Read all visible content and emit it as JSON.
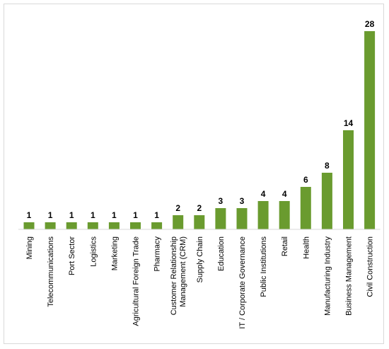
{
  "chart_data": {
    "type": "bar",
    "categories": [
      "Mining",
      "Telecommunications",
      "Port Sector",
      "Logistics",
      "Marketing",
      "Agricultural Foreign Trade",
      "Pharmacy",
      "Customer Relationship Management (CRM)",
      "Supply Chain",
      "Education",
      "IT / Corporate Governance",
      "Public Institutions",
      "Retail",
      "Health",
      "Manufacturing Industry",
      "Business Management",
      "Civil Construction"
    ],
    "category_lines": [
      [
        "Mining"
      ],
      [
        "Telecommunications"
      ],
      [
        "Port Sector"
      ],
      [
        "Logistics"
      ],
      [
        "Marketing"
      ],
      [
        "Agricultural Foreign Trade"
      ],
      [
        "Pharmacy"
      ],
      [
        "Customer Relationship",
        "Management (CRM)"
      ],
      [
        "Supply Chain"
      ],
      [
        "Education"
      ],
      [
        "IT / Corporate Governance"
      ],
      [
        "Public Institutions"
      ],
      [
        "Retail"
      ],
      [
        "Health"
      ],
      [
        "Manufacturing Industry"
      ],
      [
        "Business Management"
      ],
      [
        "Civil Construction"
      ]
    ],
    "values": [
      1,
      1,
      1,
      1,
      1,
      1,
      1,
      2,
      2,
      3,
      3,
      4,
      4,
      6,
      8,
      14,
      28
    ],
    "data_labels": true,
    "bar_color": "#6a9b2f",
    "axis_line_color": "#d9d9d9",
    "ylim": [
      0,
      28
    ],
    "grid": false,
    "legend": "none",
    "title": "",
    "xlabel": "",
    "ylabel": ""
  }
}
